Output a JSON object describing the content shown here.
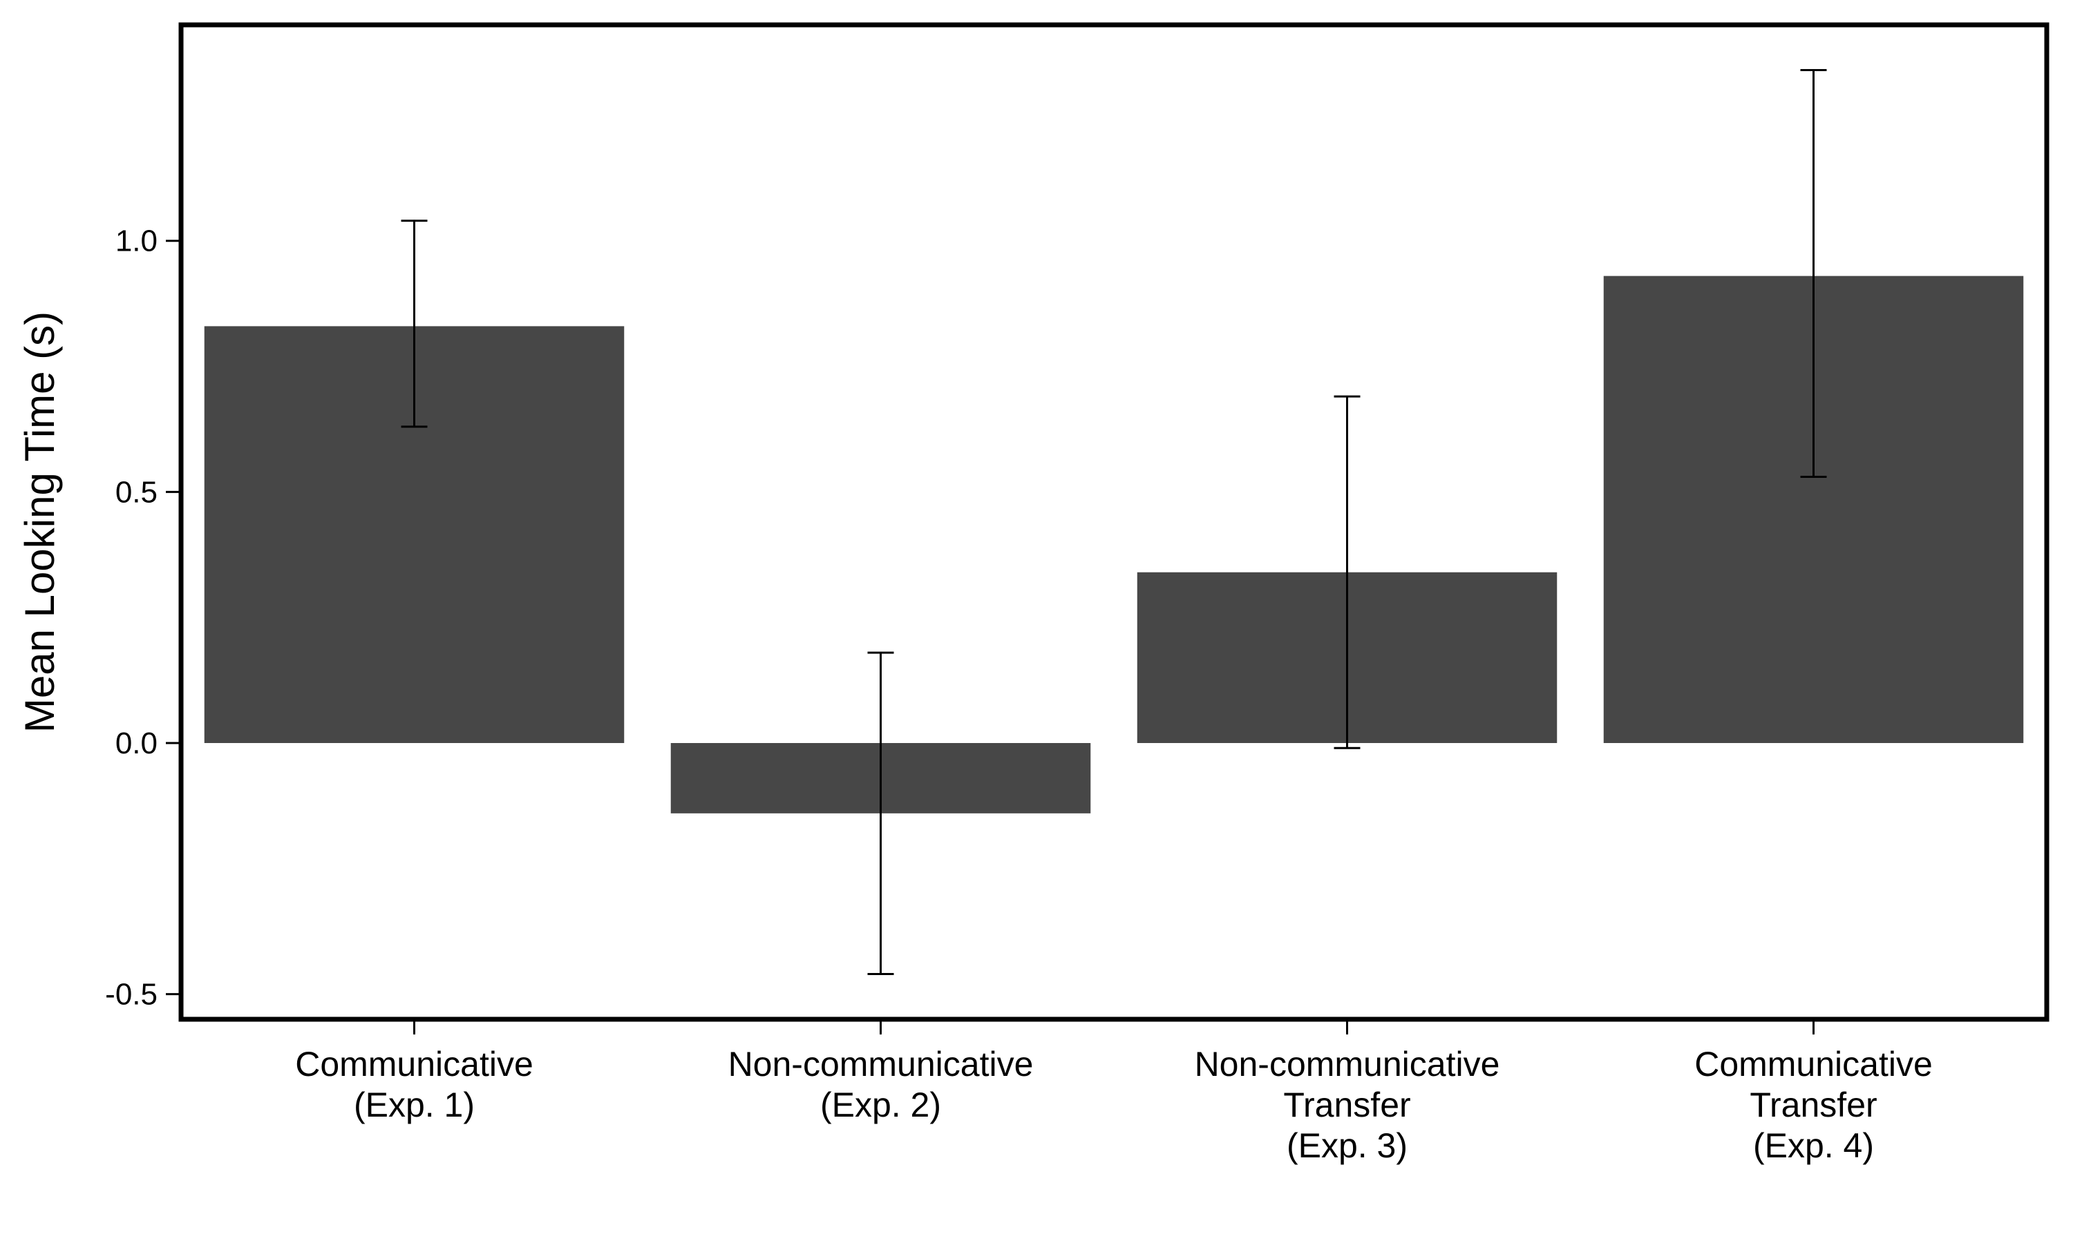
{
  "chart_data": {
    "type": "bar",
    "title": "",
    "xlabel": "",
    "ylabel": "Mean Looking Time (s)",
    "ylim": [
      -0.55,
      1.43
    ],
    "yticks": [
      -0.5,
      0.0,
      0.5,
      1.0
    ],
    "ytick_labels": [
      "-0.5",
      "0.0",
      "0.5",
      "1.0"
    ],
    "grid": false,
    "legend": "none",
    "categories": [
      [
        "Communicative",
        "(Exp. 1)"
      ],
      [
        "Non-communicative",
        "(Exp. 2)"
      ],
      [
        "Non-communicative",
        "Transfer",
        "(Exp. 3)"
      ],
      [
        "Communicative",
        "Transfer",
        "(Exp. 4)"
      ]
    ],
    "values": [
      0.83,
      -0.14,
      0.34,
      0.93
    ],
    "error_low": [
      0.63,
      -0.46,
      -0.01,
      0.53
    ],
    "error_high": [
      1.04,
      0.18,
      0.69,
      1.34
    ],
    "bar_color": "#474747",
    "errorbar_color": "#000000"
  }
}
